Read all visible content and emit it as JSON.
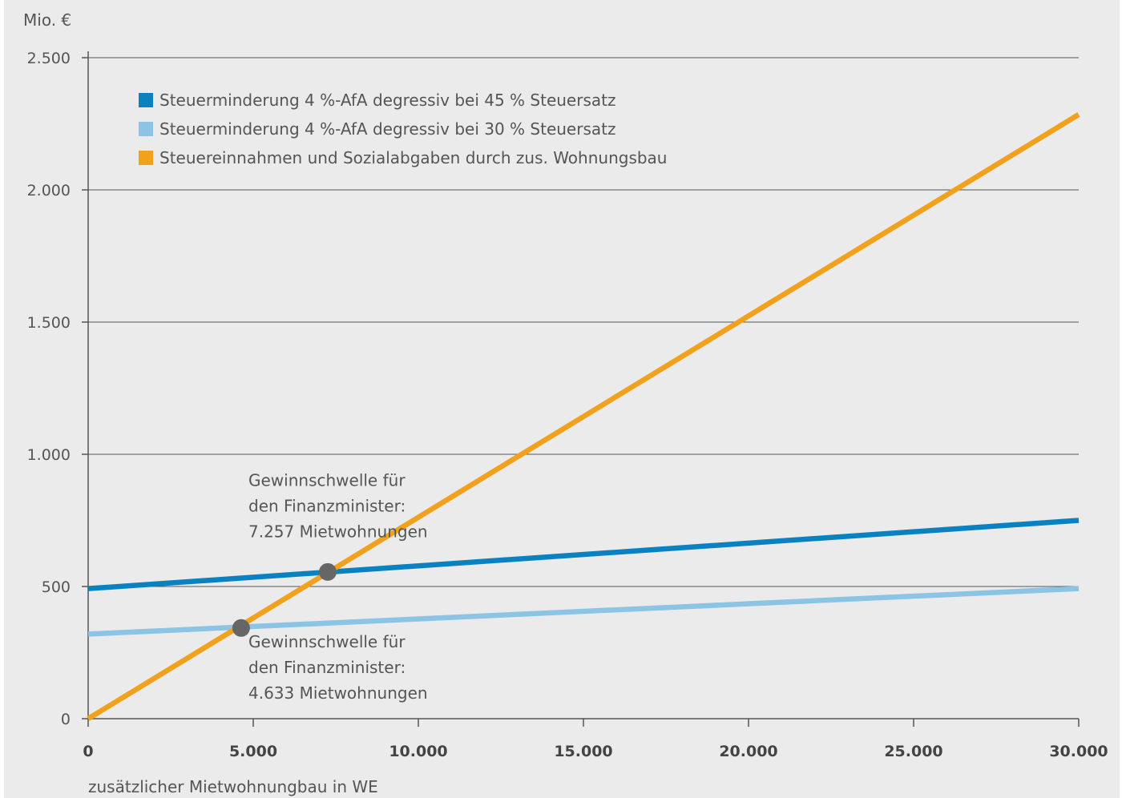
{
  "chart_data": {
    "type": "line",
    "title": "",
    "ylabel": "Mio. €",
    "xlabel": "zusätzlicher Mietwohnungbau in WE",
    "xlim": [
      0,
      30000
    ],
    "ylim": [
      0,
      2500
    ],
    "grid": true,
    "legend_position": "top-left",
    "x_ticks": [
      0,
      5000,
      10000,
      15000,
      20000,
      25000,
      30000
    ],
    "x_tick_labels": [
      "0",
      "5.000",
      "10.000",
      "15.000",
      "20.000",
      "25.000",
      "30.000"
    ],
    "y_ticks": [
      0,
      500,
      1000,
      1500,
      2000,
      2500
    ],
    "y_tick_labels": [
      "0",
      "500",
      "1.000",
      "1.500",
      "2.000",
      "2.500"
    ],
    "series": [
      {
        "name": "Steuerminderung 4 %-AfA degressiv bei 45 % Steuersatz",
        "color": "#0a82c0",
        "x": [
          0,
          30000
        ],
        "y": [
          492,
          750
        ]
      },
      {
        "name": "Steuerminderung 4 %-AfA degressiv bei 30 % Steuersatz",
        "color": "#8cc4e6",
        "x": [
          0,
          30000
        ],
        "y": [
          320,
          492
        ]
      },
      {
        "name": "Steuereinnahmen und Sozialabgaben durch zus. Wohnungsbau",
        "color": "#f2a11d",
        "x": [
          0,
          30000
        ],
        "y": [
          0,
          2285
        ]
      }
    ],
    "points": [
      {
        "x": 7257,
        "y": 555,
        "color": "#666666"
      },
      {
        "x": 4633,
        "y": 343,
        "color": "#666666"
      }
    ],
    "annotations": [
      {
        "lines": [
          "Gewinnschwelle für",
          "den Finanzminister:",
          "7.257 Mietwohnungen"
        ],
        "anchor_x": 5000,
        "anchor_y": 880,
        "placement": "above"
      },
      {
        "lines": [
          "Gewinnschwelle für",
          "den Finanzminister:",
          "4.633 Mietwohnungen"
        ],
        "anchor_x": 5000,
        "anchor_y": 270,
        "placement": "below"
      }
    ]
  }
}
